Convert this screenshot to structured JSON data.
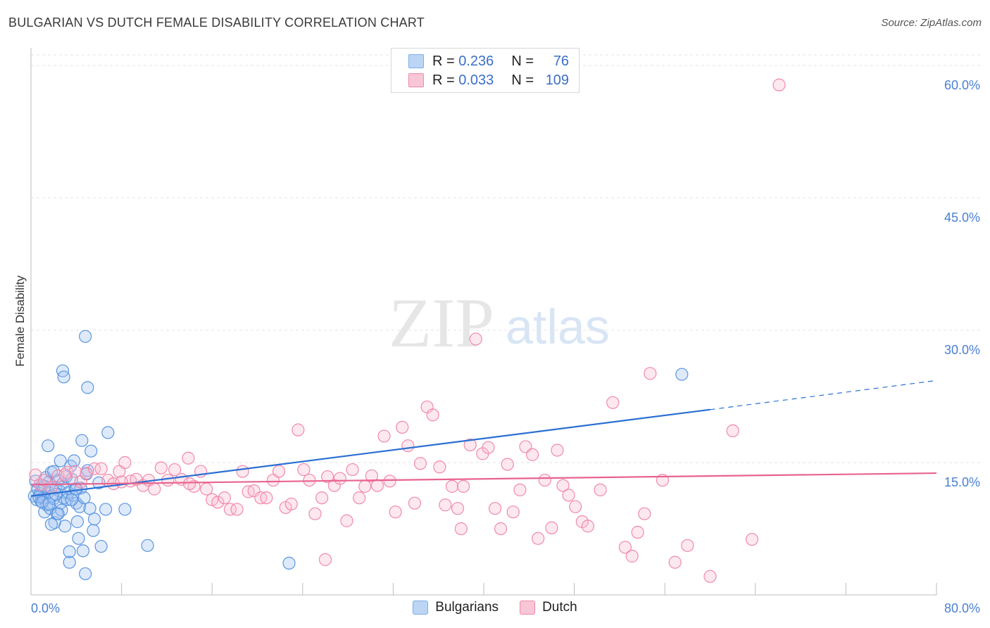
{
  "title": "BULGARIAN VS DUTCH FEMALE DISABILITY CORRELATION CHART",
  "source": "Source: ZipAtlas.com",
  "watermark": {
    "zip": "ZIP",
    "atlas": "atlas"
  },
  "legend": {
    "rows": [
      {
        "r_label": "R =",
        "r_value": "0.236",
        "n_label": "N =",
        "n_value": "76",
        "color": "#7aaee8",
        "fill": "#bcd5f5"
      },
      {
        "r_label": "R =",
        "r_value": "0.033",
        "n_label": "N =",
        "n_value": "109",
        "color": "#f08aaa",
        "fill": "#f9c6d6"
      }
    ]
  },
  "bottom_legend": [
    {
      "label": "Bulgarians",
      "fill": "#bcd5f5",
      "color": "#7aaee8"
    },
    {
      "label": "Dutch",
      "fill": "#f9c6d6",
      "color": "#f08aaa"
    }
  ],
  "chart_data": {
    "type": "scatter",
    "title": "BULGARIAN VS DUTCH FEMALE DISABILITY CORRELATION CHART",
    "xlabel": "",
    "ylabel": "Female Disability",
    "xlim": [
      0,
      80
    ],
    "ylim": [
      0,
      62
    ],
    "x_tick_labels": [
      "0.0%",
      "80.0%"
    ],
    "y_ticks": [
      15,
      30,
      45,
      60
    ],
    "y_tick_labels": [
      "15.0%",
      "30.0%",
      "45.0%",
      "60.0%"
    ],
    "series": [
      {
        "name": "Bulgarians",
        "color": "#5b95e0",
        "fill": "rgba(160,196,240,0.35)",
        "trend": {
          "x0": 0,
          "y0": 11.2,
          "x1": 60,
          "y1": 21.0,
          "x_dash_end": 80,
          "y_dash_end": 24.3,
          "color": "#2a6fd4"
        },
        "points": [
          [
            0.3,
            11.2
          ],
          [
            0.5,
            10.8
          ],
          [
            0.6,
            12.0
          ],
          [
            0.8,
            11.5
          ],
          [
            0.9,
            10.6
          ],
          [
            1.0,
            12.4
          ],
          [
            1.1,
            11.0
          ],
          [
            1.2,
            9.4
          ],
          [
            1.3,
            13.3
          ],
          [
            1.4,
            10.2
          ],
          [
            1.5,
            11.6
          ],
          [
            1.6,
            12.8
          ],
          [
            1.7,
            9.8
          ],
          [
            1.8,
            13.9
          ],
          [
            1.9,
            11.2
          ],
          [
            2.0,
            10.9
          ],
          [
            2.1,
            8.2
          ],
          [
            2.2,
            12.2
          ],
          [
            2.3,
            9.2
          ],
          [
            2.4,
            13.0
          ],
          [
            2.5,
            11.8
          ],
          [
            2.6,
            10.4
          ],
          [
            2.7,
            9.6
          ],
          [
            2.8,
            12.6
          ],
          [
            2.9,
            11.0
          ],
          [
            3.0,
            7.8
          ],
          [
            3.1,
            13.4
          ],
          [
            3.2,
            10.8
          ],
          [
            3.3,
            11.6
          ],
          [
            3.4,
            3.7
          ],
          [
            3.5,
            14.6
          ],
          [
            3.6,
            13.1
          ],
          [
            3.7,
            11.3
          ],
          [
            3.8,
            15.2
          ],
          [
            3.9,
            12.0
          ],
          [
            4.0,
            10.4
          ],
          [
            4.1,
            8.3
          ],
          [
            4.2,
            6.4
          ],
          [
            4.3,
            10.0
          ],
          [
            4.4,
            12.1
          ],
          [
            4.5,
            17.5
          ],
          [
            4.6,
            5.0
          ],
          [
            4.7,
            11.0
          ],
          [
            4.8,
            2.4
          ],
          [
            4.9,
            13.7
          ],
          [
            5.0,
            14.1
          ],
          [
            5.2,
            9.8
          ],
          [
            5.3,
            16.3
          ],
          [
            5.5,
            7.3
          ],
          [
            5.6,
            8.6
          ],
          [
            2.8,
            25.4
          ],
          [
            2.9,
            24.7
          ],
          [
            5.0,
            23.5
          ],
          [
            4.8,
            29.3
          ],
          [
            6.8,
            18.4
          ],
          [
            6.0,
            12.7
          ],
          [
            6.2,
            5.5
          ],
          [
            6.6,
            9.7
          ],
          [
            8.3,
            9.7
          ],
          [
            10.3,
            5.6
          ],
          [
            1.5,
            16.9
          ],
          [
            2.0,
            14.0
          ],
          [
            0.7,
            11.1
          ],
          [
            1.2,
            12.3
          ],
          [
            2.6,
            15.2
          ],
          [
            3.4,
            4.9
          ],
          [
            1.8,
            8.0
          ],
          [
            2.4,
            9.2
          ],
          [
            1.0,
            10.5
          ],
          [
            22.8,
            3.6
          ],
          [
            57.5,
            25.0
          ],
          [
            4.0,
            12.0
          ],
          [
            3.6,
            10.8
          ],
          [
            1.6,
            10.3
          ],
          [
            0.4,
            12.9
          ],
          [
            2.2,
            11.4
          ]
        ]
      },
      {
        "name": "Dutch",
        "color": "#f08aaa",
        "fill": "rgba(248,190,210,0.35)",
        "trend": {
          "x0": 0,
          "y0": 12.5,
          "x1": 80,
          "y1": 13.8,
          "color": "#e8638e"
        },
        "points": [
          [
            0.4,
            13.6
          ],
          [
            0.8,
            12.5
          ],
          [
            1.2,
            13.0
          ],
          [
            1.8,
            12.2
          ],
          [
            2.4,
            13.5
          ],
          [
            3.2,
            13.9
          ],
          [
            3.9,
            14.0
          ],
          [
            4.4,
            12.8
          ],
          [
            4.9,
            13.8
          ],
          [
            5.6,
            14.3
          ],
          [
            6.2,
            14.3
          ],
          [
            6.8,
            13.0
          ],
          [
            7.3,
            12.6
          ],
          [
            7.8,
            14.0
          ],
          [
            8.3,
            15.0
          ],
          [
            8.8,
            12.9
          ],
          [
            9.3,
            13.1
          ],
          [
            9.9,
            12.4
          ],
          [
            10.4,
            13.0
          ],
          [
            10.9,
            12.0
          ],
          [
            11.5,
            14.4
          ],
          [
            12.1,
            13.0
          ],
          [
            12.7,
            14.2
          ],
          [
            13.3,
            13.1
          ],
          [
            13.9,
            15.5
          ],
          [
            14.4,
            12.3
          ],
          [
            15.0,
            14.0
          ],
          [
            15.5,
            12.0
          ],
          [
            16.0,
            10.8
          ],
          [
            16.5,
            10.5
          ],
          [
            17.1,
            11.0
          ],
          [
            17.6,
            9.7
          ],
          [
            18.2,
            9.7
          ],
          [
            18.7,
            14.0
          ],
          [
            19.2,
            11.7
          ],
          [
            19.7,
            11.8
          ],
          [
            20.3,
            11.0
          ],
          [
            20.8,
            11.0
          ],
          [
            21.4,
            13.0
          ],
          [
            21.9,
            14.0
          ],
          [
            22.5,
            9.9
          ],
          [
            23.0,
            10.3
          ],
          [
            23.6,
            18.7
          ],
          [
            24.1,
            14.2
          ],
          [
            24.6,
            13.0
          ],
          [
            25.1,
            9.2
          ],
          [
            25.7,
            11.0
          ],
          [
            26.2,
            13.4
          ],
          [
            26.8,
            12.4
          ],
          [
            27.3,
            13.2
          ],
          [
            27.9,
            8.4
          ],
          [
            28.4,
            14.2
          ],
          [
            29.0,
            11.0
          ],
          [
            29.5,
            12.3
          ],
          [
            30.1,
            13.5
          ],
          [
            30.6,
            12.4
          ],
          [
            31.2,
            18.0
          ],
          [
            31.7,
            12.9
          ],
          [
            32.2,
            9.4
          ],
          [
            32.8,
            19.0
          ],
          [
            33.3,
            16.9
          ],
          [
            33.9,
            10.4
          ],
          [
            34.4,
            14.9
          ],
          [
            35.0,
            21.3
          ],
          [
            35.5,
            20.4
          ],
          [
            36.1,
            14.5
          ],
          [
            36.6,
            10.2
          ],
          [
            37.2,
            12.3
          ],
          [
            37.7,
            9.8
          ],
          [
            38.2,
            12.3
          ],
          [
            38.8,
            17.0
          ],
          [
            39.3,
            29.0
          ],
          [
            39.9,
            16.0
          ],
          [
            40.4,
            16.7
          ],
          [
            41.0,
            9.8
          ],
          [
            41.5,
            7.5
          ],
          [
            42.1,
            14.8
          ],
          [
            42.6,
            9.4
          ],
          [
            43.2,
            11.9
          ],
          [
            43.7,
            16.8
          ],
          [
            44.3,
            15.9
          ],
          [
            44.8,
            6.4
          ],
          [
            45.4,
            13.0
          ],
          [
            46.0,
            7.6
          ],
          [
            46.5,
            16.4
          ],
          [
            47.0,
            12.4
          ],
          [
            47.5,
            11.3
          ],
          [
            48.1,
            10.0
          ],
          [
            48.7,
            8.3
          ],
          [
            49.2,
            7.8
          ],
          [
            50.3,
            11.9
          ],
          [
            51.4,
            21.8
          ],
          [
            52.5,
            5.4
          ],
          [
            53.1,
            4.4
          ],
          [
            53.6,
            7.1
          ],
          [
            54.2,
            9.2
          ],
          [
            54.7,
            25.1
          ],
          [
            55.8,
            13.0
          ],
          [
            56.9,
            3.7
          ],
          [
            58.0,
            5.6
          ],
          [
            62.0,
            18.6
          ],
          [
            63.7,
            6.3
          ],
          [
            66.1,
            57.8
          ],
          [
            60.0,
            2.1
          ],
          [
            26.0,
            4.0
          ],
          [
            14.0,
            12.6
          ],
          [
            8.0,
            12.8
          ],
          [
            3.0,
            13.6
          ],
          [
            38.0,
            7.5
          ]
        ]
      }
    ]
  }
}
